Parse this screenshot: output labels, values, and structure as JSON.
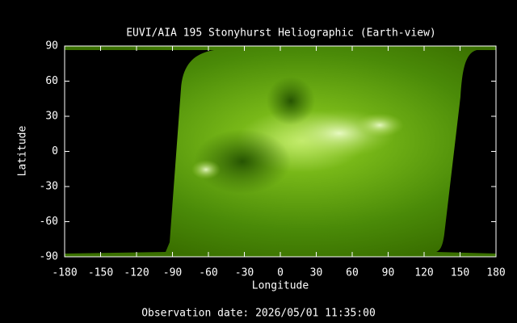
{
  "chart_data": {
    "type": "image",
    "title": "EUVI/AIA 195 Stonyhurst Heliographic (Earth-view)",
    "xlabel": "Longitude",
    "ylabel": "Latitude",
    "annotation": "Observation date: 2026/05/01 11:35:00",
    "xlim": [
      -180,
      180
    ],
    "ylim": [
      -90,
      90
    ],
    "xticks": [
      -180,
      -150,
      -120,
      -90,
      -60,
      -30,
      0,
      30,
      60,
      90,
      120,
      150,
      180
    ],
    "yticks": [
      -90,
      -60,
      -30,
      0,
      30,
      60,
      90
    ]
  }
}
